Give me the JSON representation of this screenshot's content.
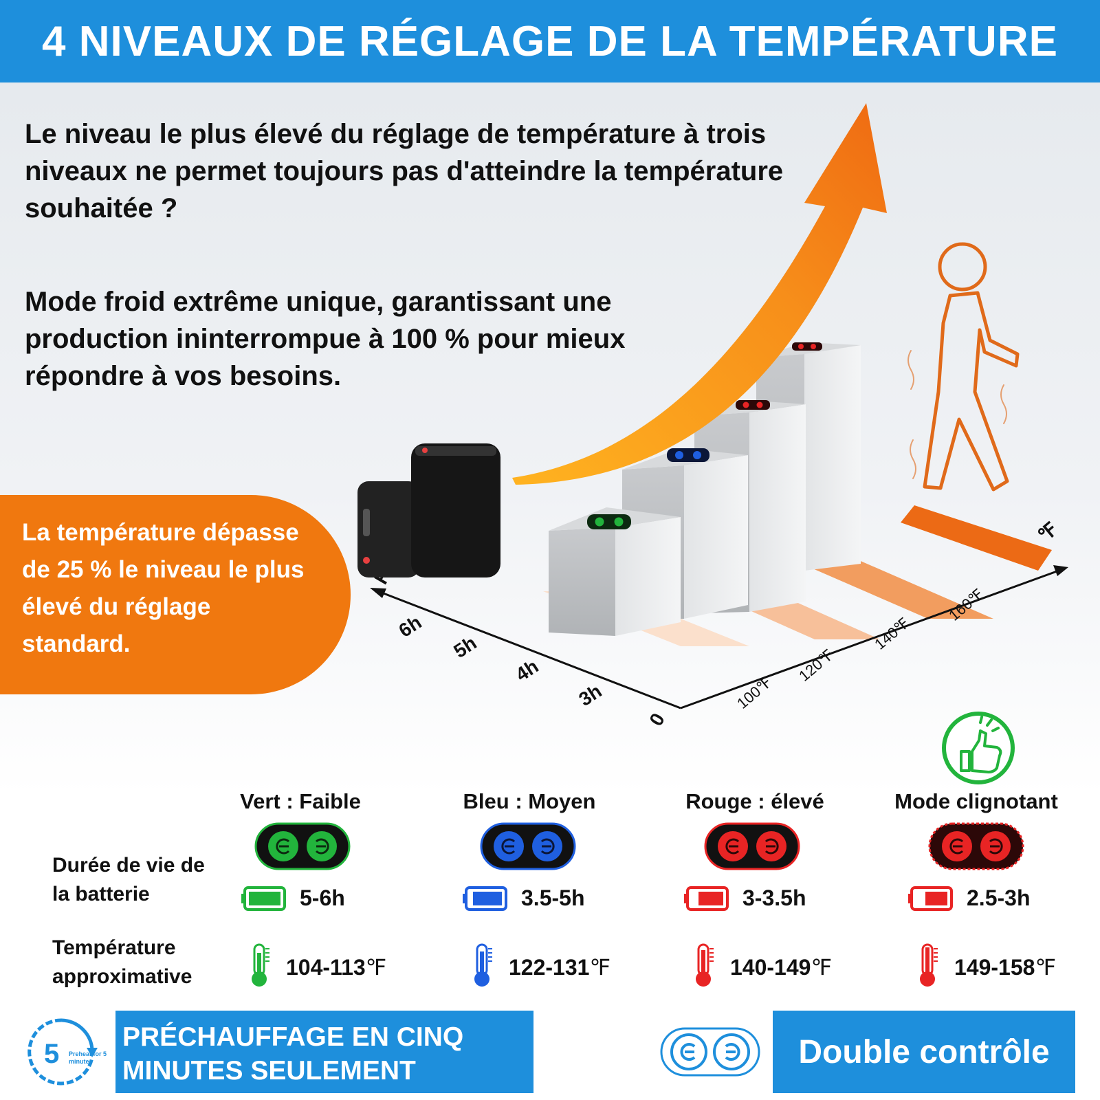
{
  "header": {
    "title": "4 NIVEAUX DE RÉGLAGE DE LA TEMPÉRATURE"
  },
  "intro": {
    "question": "Le niveau le plus élevé du réglage de température à trois niveaux ne permet toujours pas d'atteindre la température souhaitée ?",
    "mode": "Mode froid extrême unique, garantissant une production ininterrompue à 100 % pour mieux répondre à vos besoins."
  },
  "badge": {
    "text": "La température dépasse de 25 % le niveau le plus élevé du réglage standard."
  },
  "chart": {
    "time_axis_label": "H",
    "temp_axis_label": "℉",
    "origin_label": "0",
    "time_ticks": [
      "3h",
      "4h",
      "5h",
      "6h"
    ],
    "temp_ticks": [
      "100℉",
      "120℉",
      "140℉",
      "160℉"
    ]
  },
  "levels": [
    {
      "title": "Vert : Faible",
      "battery": "5-6h",
      "temperature": "104-113",
      "color": "#22b43c",
      "pill_bg": "#0c2a10"
    },
    {
      "title": "Bleu : Moyen",
      "battery": "3.5-5h",
      "temperature": "122-131",
      "color": "#1f5fe0",
      "pill_bg": "#0b1638"
    },
    {
      "title": "Rouge : élevé",
      "battery": "3-3.5h",
      "temperature": "140-149",
      "color": "#e82424",
      "pill_bg": "#2c0808"
    },
    {
      "title": "Mode clignotant",
      "battery": "2.5-3h",
      "temperature": "149-158",
      "color": "#e82424",
      "pill_bg": "#2c0808"
    }
  ],
  "temp_unit": "℉",
  "row_labels": {
    "battery": "Durée de vie de la batterie",
    "temperature": "Température approximative"
  },
  "bottom": {
    "preheat_number": "5",
    "preheat_small": "Preheat for 5 minutes",
    "preheat_label": "PRÉCHAUFFAGE EN CINQ MINUTES SEULEMENT",
    "double_control": "Double contrôle"
  },
  "colors": {
    "accent_blue": "#1e8fdc",
    "accent_orange": "#f0780f",
    "thumb_green": "#22b43c"
  }
}
